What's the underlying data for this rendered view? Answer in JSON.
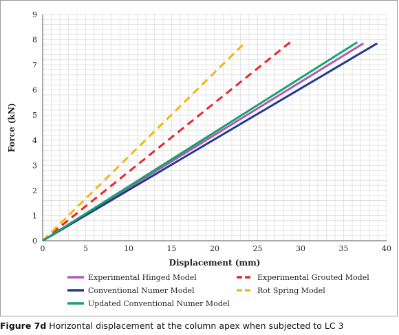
{
  "chart_data": {
    "type": "line",
    "xlabel": "Displacement (mm)",
    "ylabel": "Force (kN)",
    "xlim": [
      0,
      40
    ],
    "ylim": [
      0,
      9
    ],
    "xticks": [
      0,
      5,
      10,
      15,
      20,
      25,
      30,
      35,
      40
    ],
    "yticks": [
      0,
      1,
      2,
      3,
      4,
      5,
      6,
      7,
      8,
      9
    ],
    "grid": true,
    "legend_position": "bottom",
    "series": [
      {
        "name": "Experimental Hinged Model",
        "color": "#b05ab8",
        "dash": "solid",
        "x": [
          0,
          37.3
        ],
        "y": [
          0,
          7.85
        ]
      },
      {
        "name": "Experimental Grouted Model",
        "color": "#e8262b",
        "dash": "dashed",
        "x": [
          0,
          28.8
        ],
        "y": [
          0,
          7.9
        ]
      },
      {
        "name": "Conventional Numer Model",
        "color": "#223a8f",
        "dash": "solid",
        "x": [
          0,
          38.9
        ],
        "y": [
          0,
          7.85
        ]
      },
      {
        "name": "Rot Spring Model",
        "color": "#f6b40e",
        "dash": "dashed",
        "x": [
          0,
          23.6
        ],
        "y": [
          0,
          7.9
        ]
      },
      {
        "name": "Updated Conventional Numer Model",
        "color": "#16a36a",
        "dash": "solid",
        "x": [
          0,
          36.6
        ],
        "y": [
          0,
          7.9
        ]
      }
    ]
  },
  "caption": {
    "figure_label": "Figure 7d",
    "text": "Horizontal displacement at the column apex when subjected to LC 3"
  }
}
